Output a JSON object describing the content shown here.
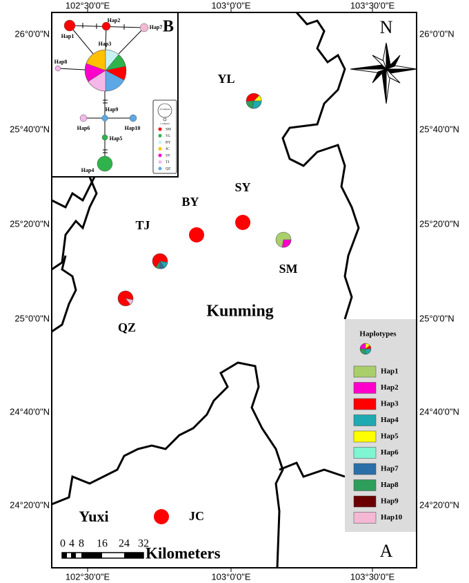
{
  "map": {
    "longitude_labels": [
      "102°30'0\"E",
      "103°0'0\"E",
      "103°30'0\"E"
    ],
    "latitude_labels": [
      "26°0'0\"N",
      "25°40'0\"N",
      "25°20'0\"N",
      "25°0'0\"N",
      "24°40'0\"N",
      "24°20'0\"N"
    ],
    "north": "N",
    "panels": {
      "a": "A",
      "b": "B"
    },
    "sites": [
      "YL",
      "SY",
      "BY",
      "TJ",
      "SM",
      "QZ",
      "JC"
    ],
    "places": [
      "Kunming",
      "Yuxi"
    ],
    "legend": {
      "title": "Haplotypes",
      "items": [
        {
          "label": "Hap1",
          "color": "#a9cf6b"
        },
        {
          "label": "Hap2",
          "color": "#ff00cc"
        },
        {
          "label": "Hap3",
          "color": "#ff0000"
        },
        {
          "label": "Hap4",
          "color": "#1fa9b0"
        },
        {
          "label": "Hap5",
          "color": "#ffff00"
        },
        {
          "label": "Hap6",
          "color": "#7ff5d2"
        },
        {
          "label": "Hap7",
          "color": "#2a6fa8"
        },
        {
          "label": "Hap8",
          "color": "#2e9e5b"
        },
        {
          "label": "Hap9",
          "color": "#6b0000"
        },
        {
          "label": "Hap10",
          "color": "#f4b8d4"
        }
      ]
    },
    "scale": {
      "ticks": [
        0,
        4,
        8,
        16,
        24,
        32
      ],
      "unit": "Kilometers"
    }
  },
  "network": {
    "haplotypes": [
      "Hap1",
      "Hap2",
      "Hap3",
      "Hap4",
      "Hap5",
      "Hap6",
      "Hap7",
      "Hap8",
      "Hap9",
      "Hap10"
    ],
    "legend": {
      "sizes": [
        "10 samples",
        "1 samples"
      ],
      "populations": [
        {
          "label": "SM",
          "color": "#ff0000"
        },
        {
          "label": "YL",
          "color": "#2fb34a"
        },
        {
          "label": "BY",
          "color": "#c6f2f4"
        },
        {
          "label": "JC",
          "color": "#ffc000"
        },
        {
          "label": "SY",
          "color": "#ff00cc"
        },
        {
          "label": "TJ",
          "color": "#f4b8e8"
        },
        {
          "label": "QZ",
          "color": "#5ca8e6"
        }
      ]
    }
  }
}
